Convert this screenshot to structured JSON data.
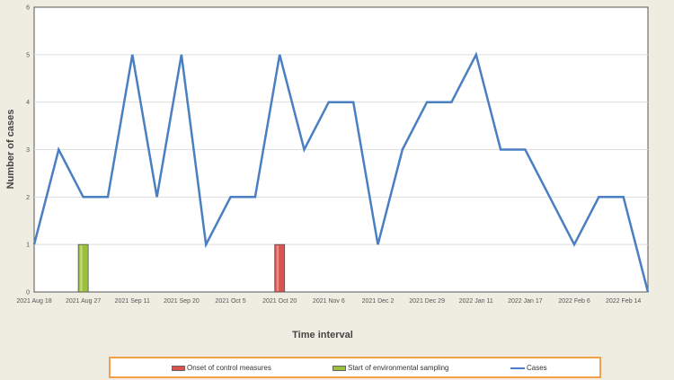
{
  "chart_data": {
    "type": "line",
    "xlabel": "Time interval",
    "ylabel": "Number of cases",
    "ylim": [
      0,
      6
    ],
    "yticks": [
      0,
      1,
      2,
      3,
      4,
      5,
      6
    ],
    "grid": true,
    "legend_position": "bottom",
    "x_tick_labels": [
      "2021 Aug 18",
      "2021 Aug 27",
      "2021 Sep 11",
      "2021 Sep 20",
      "2021 Oct 5",
      "2021 Oct 20",
      "2021 Nov 6",
      "2021 Dec 2",
      "2021 Dec 29",
      "2022 Jan 11",
      "2022 Jan 17",
      "2022 Feb 6",
      "2022 Feb 14"
    ],
    "series": [
      {
        "name": "Cases",
        "kind": "line",
        "color": "#4a7fc1",
        "values": [
          1,
          3,
          2,
          2,
          5,
          2,
          5,
          1,
          2,
          2,
          5,
          3,
          4,
          4,
          1,
          3,
          4,
          4,
          5,
          3,
          3,
          2,
          1,
          2,
          2,
          0
        ]
      },
      {
        "name": "Onset of control measures",
        "kind": "bar",
        "color": "#d9534f",
        "points": [
          {
            "index": 10,
            "value": 1
          }
        ]
      },
      {
        "name": "Start of environmental sampling",
        "kind": "bar",
        "color": "#9bc13c",
        "points": [
          {
            "index": 2,
            "value": 1
          }
        ]
      }
    ]
  },
  "legend": {
    "control": "Onset of control measures",
    "sampling": "Start of environmental sampling",
    "cases": "Cases"
  }
}
